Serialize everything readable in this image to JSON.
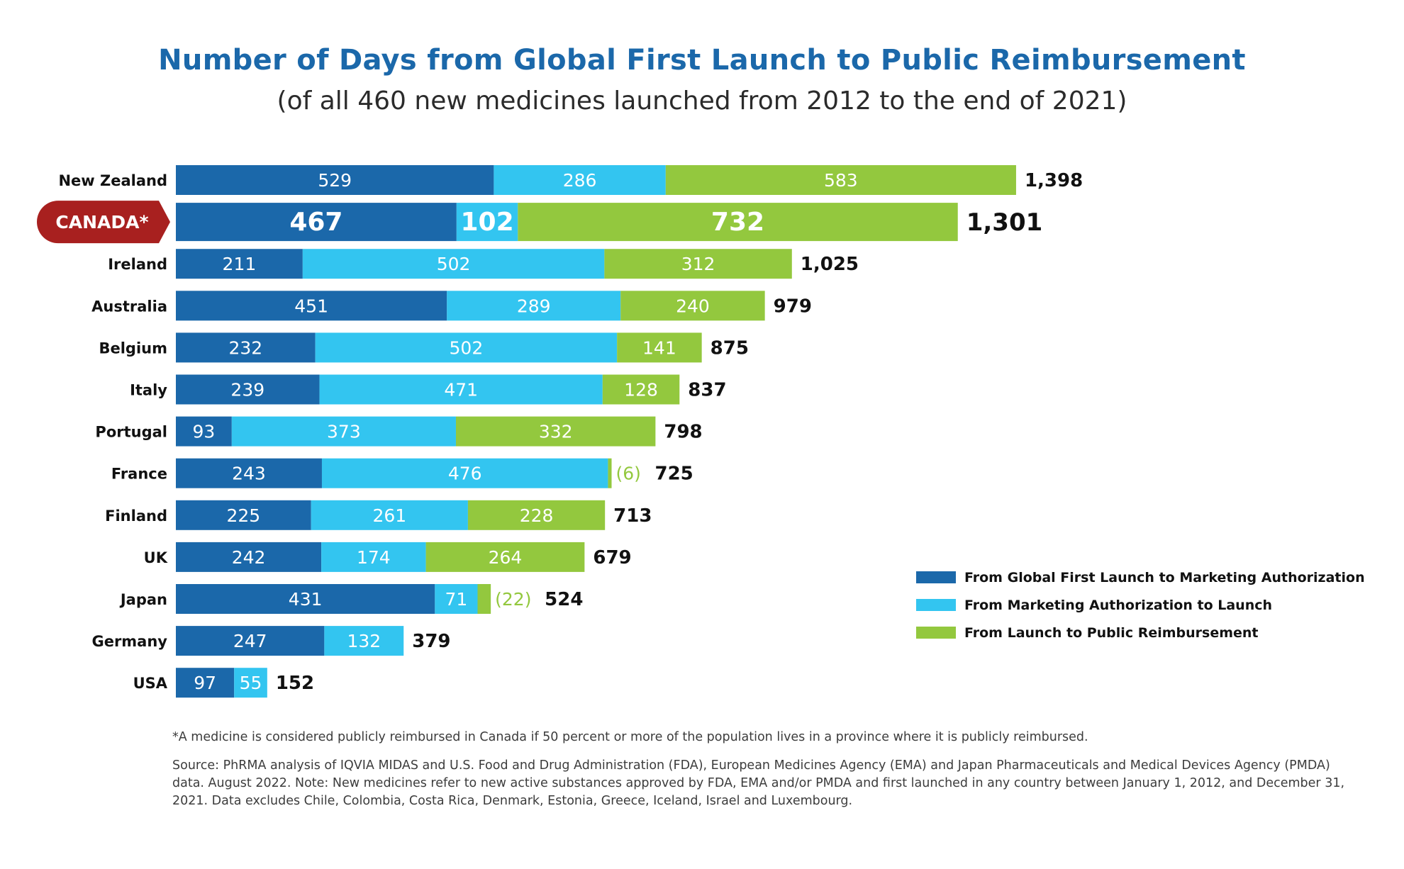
{
  "header": {
    "title": "Number of Days from Global First Launch to Public Reimbursement",
    "subtitle": "(of all 460 new medicines launched from 2012 to the end of 2021)"
  },
  "colors": {
    "series1": "#1b68aa",
    "series2": "#33c5f0",
    "series3": "#93c83e",
    "highlight": "#a8201f",
    "text": "#111111"
  },
  "chart_data": {
    "type": "bar",
    "orientation": "horizontal",
    "stacked": true,
    "categories": [
      "New Zealand",
      "CANADA*",
      "Ireland",
      "Australia",
      "Belgium",
      "Italy",
      "Portugal",
      "France",
      "Finland",
      "UK",
      "Japan",
      "Germany",
      "USA"
    ],
    "highlight_category": "CANADA*",
    "series": [
      {
        "name": "From Global First Launch to Marketing Authorization",
        "values": [
          529,
          467,
          211,
          451,
          232,
          239,
          93,
          243,
          225,
          242,
          431,
          247,
          97
        ]
      },
      {
        "name": "From Marketing Authorization to Launch",
        "values": [
          286,
          102,
          502,
          289,
          502,
          471,
          373,
          476,
          261,
          174,
          71,
          132,
          55
        ]
      },
      {
        "name": "From Launch to Public Reimbursement",
        "values": [
          583,
          732,
          312,
          240,
          141,
          128,
          332,
          6,
          228,
          264,
          22,
          0,
          0
        ]
      }
    ],
    "segment_labels": [
      [
        "529",
        "286",
        "583"
      ],
      [
        "467",
        "102",
        "732"
      ],
      [
        "211",
        "502",
        "312"
      ],
      [
        "451",
        "289",
        "240"
      ],
      [
        "232",
        "502",
        "141"
      ],
      [
        "239",
        "471",
        "128"
      ],
      [
        "93",
        "373",
        "332"
      ],
      [
        "243",
        "476",
        "(6)"
      ],
      [
        "225",
        "261",
        "228"
      ],
      [
        "242",
        "174",
        "264"
      ],
      [
        "431",
        "71",
        "(22)"
      ],
      [
        "247",
        "132",
        ""
      ],
      [
        "97",
        "55",
        ""
      ]
    ],
    "totals": [
      "1,398",
      "1,301",
      "1,025",
      "979",
      "875",
      "837",
      "798",
      "725",
      "713",
      "679",
      "524",
      "379",
      "152"
    ],
    "legend_position": "right",
    "grid": false
  },
  "footnotes": {
    "note1": "*A medicine is considered publicly reimbursed in Canada if 50 percent or more of the population lives in a province where it is publicly reimbursed.",
    "note2": "Source: PhRMA analysis of IQVIA MIDAS and U.S. Food and Drug Administration (FDA), European Medicines Agency (EMA) and Japan Pharmaceuticals and Medical Devices Agency (PMDA) data. August 2022. Note: New medicines refer to new active substances approved by FDA, EMA and/or PMDA and first launched in any country between January 1, 2012, and December 31, 2021. Data excludes Chile, Colombia, Costa Rica, Denmark, Estonia, Greece, Iceland, Israel and Luxembourg."
  }
}
